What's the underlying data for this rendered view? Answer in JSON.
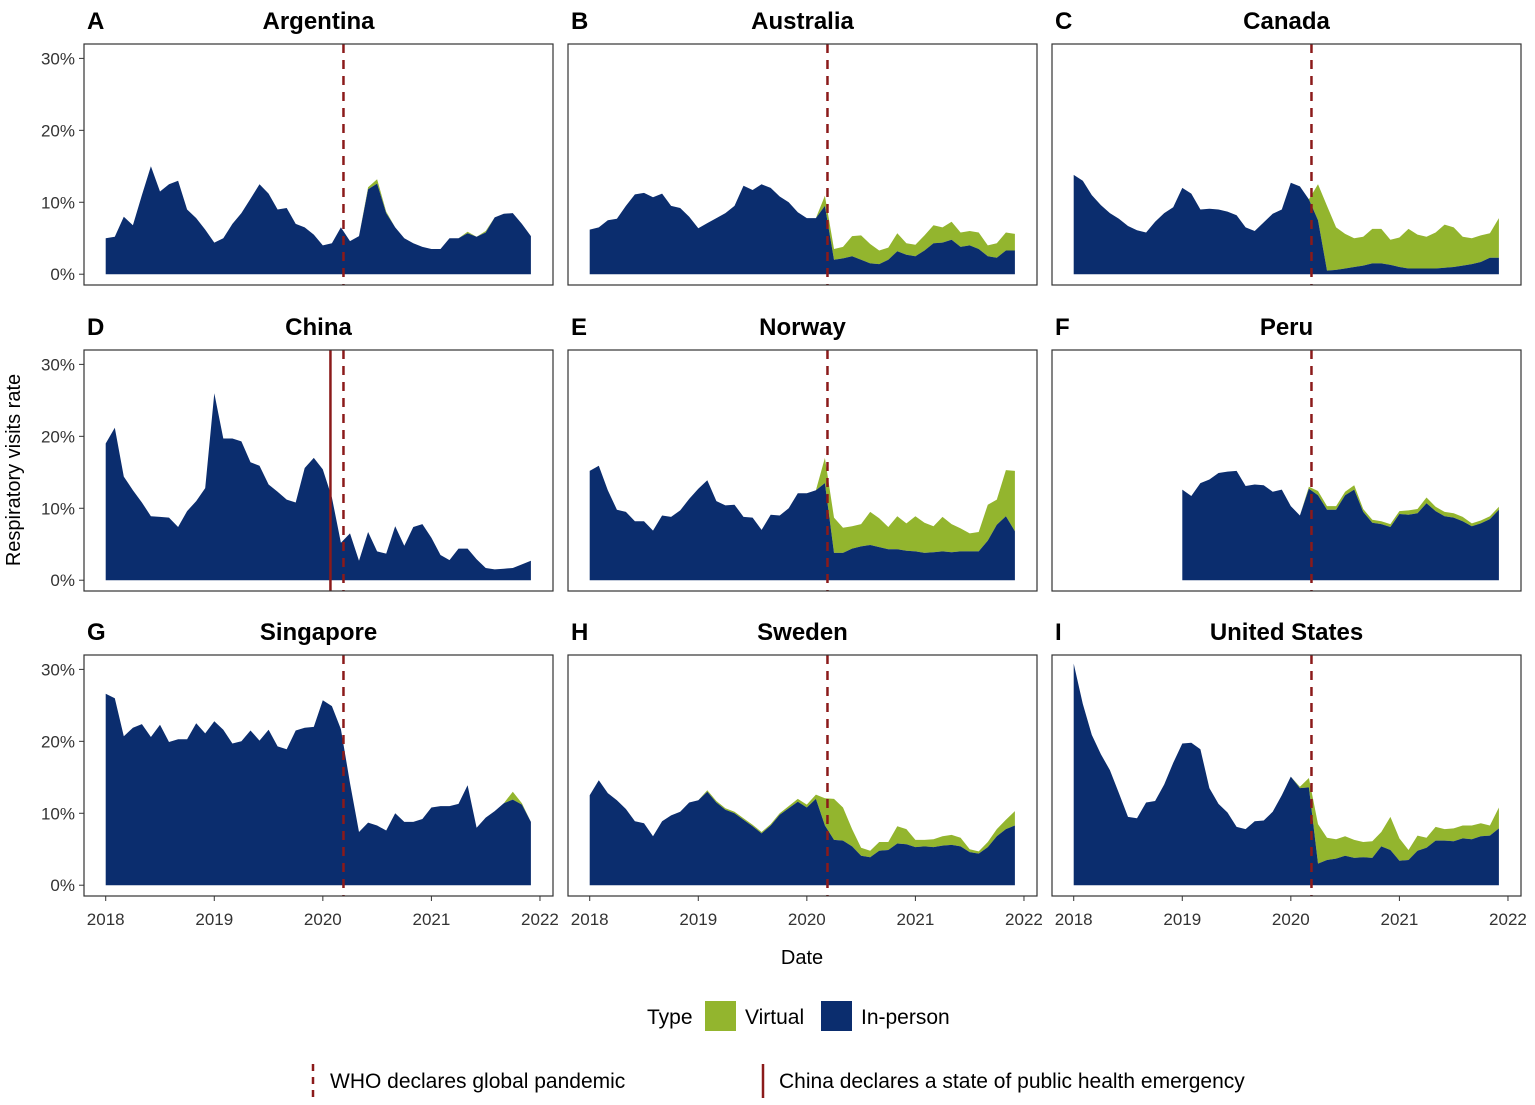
{
  "figure": {
    "xlabel": "Date",
    "ylabel": "Respiratory visits rate",
    "legend": {
      "title": "Type",
      "virtual_label": "Virtual",
      "inperson_label": "In-person"
    },
    "lines_legend": {
      "who": "WHO declares global pandemic",
      "china": "China declares a state of public health emergency"
    },
    "colors": {
      "virtual": "#93b52e",
      "inperson": "#0b2d6e",
      "vline": "#8b1a1a"
    }
  },
  "chart_data": {
    "type": "area",
    "stacked": true,
    "x_unit": "year",
    "x_ticks": [
      2018,
      2019,
      2020,
      2021,
      2022
    ],
    "y_ticks": [
      0,
      10,
      20,
      30
    ],
    "y_tick_labels": [
      "0%",
      "10%",
      "20%",
      "30%"
    ],
    "xlim": [
      2017.8,
      2022.12
    ],
    "ylim": [
      -1.5,
      32
    ],
    "who_date": 2020.19,
    "china_date": 2020.07,
    "panels": [
      {
        "letter": "A",
        "title": "Argentina",
        "start": 2018.0,
        "inperson": [
          5,
          5.2,
          8,
          6.8,
          11,
          15,
          11.5,
          12.5,
          13,
          9,
          7.8,
          6.2,
          4.4,
          5,
          7,
          8.5,
          10.5,
          12.5,
          11.2,
          9,
          9.2,
          7,
          6.5,
          5.5,
          4,
          4.3,
          6.5,
          4.6,
          5.3,
          11.8,
          12.6,
          8.5,
          6.5,
          5,
          4.3,
          3.8,
          3.5,
          3.5,
          5,
          5,
          5.7,
          5.2,
          5.8,
          7.9,
          8.4,
          8.5,
          7,
          5.3
        ],
        "virtual": [
          0,
          0,
          0,
          0,
          0,
          0,
          0,
          0,
          0,
          0,
          0,
          0,
          0,
          0,
          0,
          0,
          0,
          0,
          0,
          0,
          0,
          0,
          0,
          0,
          0,
          0,
          0,
          0,
          0,
          0.3,
          0.6,
          0.2,
          0,
          0,
          0,
          0,
          0,
          0,
          0,
          0,
          0.2,
          0,
          0.2,
          0,
          0,
          0,
          0,
          0
        ]
      },
      {
        "letter": "B",
        "title": "Australia",
        "start": 2018.0,
        "inperson": [
          6.2,
          6.5,
          7.5,
          7.7,
          9.5,
          11.1,
          11.3,
          10.7,
          11.2,
          9.5,
          9.2,
          8,
          6.4,
          7.1,
          7.8,
          8.5,
          9.5,
          12.3,
          11.7,
          12.5,
          12,
          10.8,
          10,
          8.6,
          7.8,
          7.8,
          9.5,
          2,
          2.2,
          2.5,
          2,
          1.5,
          1.4,
          2,
          3.2,
          2.7,
          2.5,
          3.3,
          4.3,
          4.4,
          4.8,
          3.8,
          4,
          3.5,
          2.5,
          2.3,
          3.3,
          3.3
        ],
        "virtual": [
          0,
          0,
          0,
          0,
          0,
          0,
          0,
          0,
          0,
          0,
          0,
          0,
          0,
          0,
          0,
          0,
          0,
          0,
          0,
          0,
          0,
          0,
          0,
          0,
          0,
          0,
          1.4,
          1.5,
          1.6,
          2.8,
          3.4,
          2.7,
          1.9,
          1.7,
          2.5,
          1.6,
          1.6,
          2.1,
          2.5,
          2.1,
          2.5,
          2,
          2,
          2.3,
          1.5,
          2,
          2.5,
          2.3
        ]
      },
      {
        "letter": "C",
        "title": "Canada",
        "start": 2018.0,
        "inperson": [
          13.8,
          13,
          11,
          9.6,
          8.5,
          7.7,
          6.7,
          6.1,
          5.8,
          7.3,
          8.5,
          9.3,
          12,
          11.2,
          9,
          9.1,
          9,
          8.7,
          8.2,
          6.5,
          6,
          7.2,
          8.4,
          9,
          12.7,
          12.2,
          10.4,
          7.5,
          0.5,
          0.6,
          0.8,
          1,
          1.2,
          1.5,
          1.5,
          1.3,
          1,
          0.8,
          0.8,
          0.8,
          0.8,
          0.9,
          1,
          1.2,
          1.4,
          1.7,
          2.3,
          2.3
        ],
        "virtual": [
          0,
          0,
          0,
          0,
          0,
          0,
          0,
          0,
          0,
          0,
          0,
          0,
          0,
          0,
          0,
          0,
          0,
          0,
          0,
          0,
          0,
          0,
          0,
          0,
          0,
          0,
          0,
          5,
          9,
          5.9,
          4.8,
          4,
          4,
          4.8,
          4.8,
          3.5,
          4.1,
          5.5,
          4.7,
          4.4,
          5,
          6,
          5.5,
          4,
          3.6,
          3.7,
          3.4,
          5.5
        ]
      },
      {
        "letter": "D",
        "title": "China",
        "start": 2018.0,
        "china_line": true,
        "inperson": [
          19,
          21.2,
          14.4,
          12.5,
          10.8,
          8.9,
          8.8,
          8.7,
          7.4,
          9.6,
          11,
          12.8,
          26,
          19.7,
          19.7,
          19.3,
          16.4,
          15.9,
          13.3,
          12.3,
          11.2,
          10.8,
          15.6,
          17,
          15.4,
          11.5,
          5.2,
          6.5,
          2.7,
          6.7,
          4,
          3.7,
          7.5,
          4.8,
          7.4,
          7.8,
          5.9,
          3.5,
          2.8,
          4.4,
          4.4,
          2.9,
          1.7,
          1.5,
          1.6,
          1.7,
          2.2,
          2.7
        ],
        "virtual": [
          0,
          0,
          0,
          0,
          0,
          0,
          0,
          0,
          0,
          0,
          0,
          0,
          0,
          0,
          0,
          0,
          0,
          0,
          0,
          0,
          0,
          0,
          0,
          0,
          0,
          0,
          0,
          0,
          0,
          0,
          0,
          0,
          0,
          0,
          0,
          0,
          0,
          0,
          0,
          0,
          0,
          0,
          0,
          0,
          0,
          0,
          0,
          0
        ]
      },
      {
        "letter": "E",
        "title": "Norway",
        "start": 2018.0,
        "inperson": [
          15.2,
          15.9,
          12.5,
          9.8,
          9.5,
          8.2,
          8.2,
          6.9,
          9,
          8.8,
          9.7,
          11.3,
          12.7,
          13.9,
          11,
          10.4,
          10.5,
          8.8,
          8.7,
          7,
          9.1,
          9,
          10,
          12.1,
          12.1,
          12.5,
          13.5,
          3.8,
          3.8,
          4.4,
          4.7,
          4.9,
          4.6,
          4.3,
          4.3,
          4.1,
          4,
          3.8,
          3.9,
          4,
          3.9,
          4,
          4,
          4,
          5.5,
          7.7,
          8.9,
          6.8
        ],
        "virtual": [
          0,
          0,
          0,
          0,
          0,
          0,
          0,
          0,
          0,
          0,
          0,
          0,
          0,
          0,
          0,
          0,
          0,
          0,
          0,
          0,
          0,
          0,
          0,
          0,
          0,
          0,
          3.5,
          4.9,
          3.5,
          3.1,
          3.1,
          4.6,
          4,
          3.1,
          4.6,
          3.8,
          4.9,
          4.2,
          3.6,
          4.8,
          3.9,
          3.2,
          2.5,
          2.7,
          5,
          3.5,
          6.4,
          8.4
        ]
      },
      {
        "letter": "F",
        "title": "Peru",
        "start": 2019.0,
        "inperson": [
          12.6,
          11.7,
          13.5,
          14,
          14.9,
          15.1,
          15.2,
          13.1,
          13.3,
          13.2,
          12.3,
          12.6,
          10.3,
          9,
          12.7,
          11.8,
          9.8,
          9.8,
          11.8,
          12.6,
          9.5,
          8,
          7.8,
          7.4,
          9.2,
          9.1,
          9.3,
          10.7,
          9.6,
          8.9,
          8.7,
          8.2,
          7.5,
          7.9,
          8.5,
          9.8
        ],
        "virtual": [
          0,
          0,
          0,
          0,
          0,
          0,
          0,
          0,
          0,
          0,
          0,
          0,
          0,
          0,
          0.3,
          0.6,
          0.5,
          0.5,
          0.5,
          0.6,
          0.4,
          0.4,
          0.4,
          0.4,
          0.4,
          0.6,
          0.6,
          0.8,
          0.6,
          0.6,
          0.6,
          0.6,
          0.4,
          0.4,
          0.4,
          0.4
        ]
      },
      {
        "letter": "G",
        "title": "Singapore",
        "start": 2018.0,
        "inperson": [
          26.6,
          26,
          20.7,
          21.9,
          22.4,
          20.6,
          22.3,
          19.9,
          20.3,
          20.3,
          22.5,
          21.1,
          22.8,
          21.6,
          19.7,
          20,
          21.5,
          20.1,
          21.6,
          19.3,
          18.9,
          21.5,
          21.9,
          22,
          25.7,
          24.9,
          21.7,
          14.2,
          7.4,
          8.7,
          8.3,
          7.6,
          10,
          8.8,
          8.8,
          9.2,
          10.8,
          11,
          11,
          11.3,
          13.9,
          8,
          9.4,
          10.3,
          11.4,
          11.9,
          11.2,
          8.8
        ],
        "virtual": [
          0,
          0,
          0,
          0,
          0,
          0,
          0,
          0,
          0,
          0,
          0,
          0,
          0,
          0,
          0,
          0,
          0,
          0,
          0,
          0,
          0,
          0,
          0,
          0,
          0,
          0,
          0,
          0,
          0,
          0,
          0,
          0,
          0,
          0,
          0,
          0,
          0,
          0,
          0,
          0,
          0,
          0,
          0,
          0,
          0,
          1.1,
          0.2,
          0
        ]
      },
      {
        "letter": "H",
        "title": "Sweden",
        "start": 2018.0,
        "inperson": [
          12.5,
          14.6,
          12.8,
          11.8,
          10.6,
          8.9,
          8.6,
          6.8,
          8.9,
          9.7,
          10.2,
          11.5,
          11.8,
          13,
          11.5,
          10.5,
          10,
          9.1,
          8.2,
          7.2,
          8.3,
          9.8,
          10.7,
          11.6,
          10.8,
          12,
          8.3,
          6.3,
          6.2,
          5.4,
          4.1,
          3.9,
          4.8,
          4.9,
          5.8,
          5.7,
          5.3,
          5.4,
          5.3,
          5.5,
          5.6,
          5.4,
          4.6,
          4.4,
          5.3,
          6.8,
          7.8,
          8.3
        ],
        "virtual": [
          0,
          0,
          0,
          0,
          0,
          0,
          0,
          0,
          0,
          0,
          0,
          0,
          0,
          0.2,
          0.2,
          0.2,
          0.2,
          0.2,
          0.2,
          0.2,
          0.2,
          0.2,
          0.3,
          0.4,
          0.4,
          0.6,
          3.8,
          5.7,
          4.6,
          2.4,
          1.1,
          0.9,
          1.2,
          1.1,
          2.4,
          2.1,
          1,
          0.9,
          1.1,
          1.3,
          1.4,
          1.2,
          0.4,
          0.3,
          0.7,
          1,
          1.3,
          2
        ]
      },
      {
        "letter": "I",
        "title": "United States",
        "start": 2018.0,
        "inperson": [
          30.8,
          25.2,
          20.9,
          18.2,
          16,
          12.8,
          9.5,
          9.3,
          11.5,
          11.7,
          14,
          17,
          19.7,
          19.8,
          18.9,
          13.5,
          11.3,
          10.1,
          8.1,
          7.8,
          8.9,
          9,
          10.2,
          12.5,
          15.1,
          13.5,
          13.6,
          3,
          3.5,
          3.7,
          4.1,
          3.8,
          3.9,
          3.8,
          5.4,
          4.9,
          3.4,
          3.5,
          4.8,
          5.2,
          6.2,
          6.2,
          6.1,
          6.5,
          6.4,
          6.8,
          6.9,
          7.9
        ],
        "virtual": [
          0,
          0,
          0,
          0,
          0,
          0,
          0,
          0,
          0,
          0,
          0,
          0,
          0,
          0,
          0,
          0,
          0,
          0,
          0,
          0,
          0,
          0,
          0,
          0,
          0,
          0.2,
          1.3,
          5.5,
          3.1,
          2.7,
          2.7,
          2.5,
          2.1,
          2.3,
          2,
          4.6,
          3.1,
          1.4,
          2.1,
          1.4,
          1.9,
          1.6,
          1.8,
          1.8,
          1.9,
          1.8,
          1.4,
          2.9
        ]
      }
    ]
  }
}
